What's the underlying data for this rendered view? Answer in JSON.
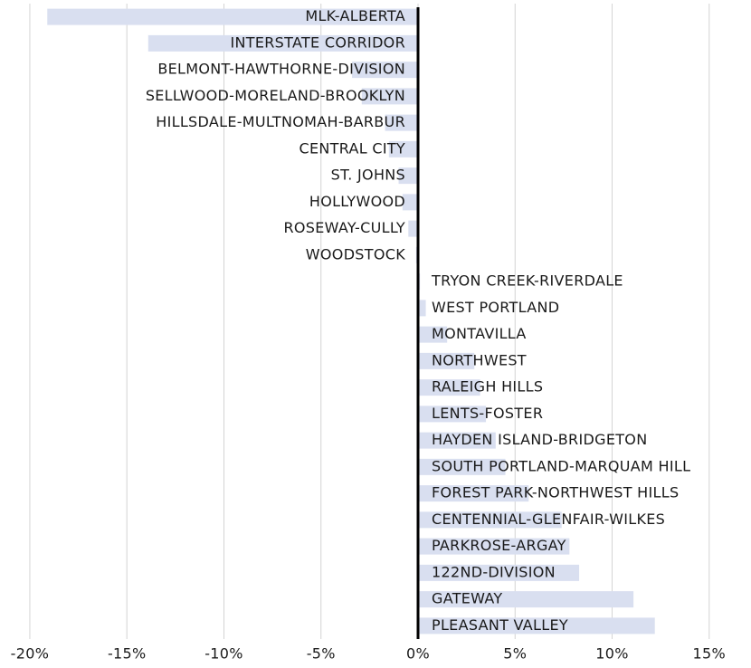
{
  "chart_data": {
    "type": "barh",
    "categories": [
      "MLK-ALBERTA",
      "INTERSTATE CORRIDOR",
      "BELMONT-HAWTHORNE-DIVISION",
      "SELLWOOD-MORELAND-BROOKLYN",
      "HILLSDALE-MULTNOMAH-BARBUR",
      "CENTRAL CITY",
      "ST. JOHNS",
      "HOLLYWOOD",
      "ROSEWAY-CULLY",
      "WOODSTOCK",
      "TRYON CREEK-RIVERDALE",
      "WEST PORTLAND",
      "MONTAVILLA",
      "NORTHWEST",
      "RALEIGH HILLS",
      "LENTS-FOSTER",
      "HAYDEN ISLAND-BRIDGETON",
      "SOUTH PORTLAND-MARQUAM HILL",
      "FOREST PARK-NORTHWEST HILLS",
      "CENTENNIAL-GLENFAIR-WILKES",
      "PARKROSE-ARGAY",
      "122ND-DIVISION",
      "GATEWAY",
      "PLEASANT VALLEY"
    ],
    "values": [
      -19.1,
      -13.9,
      -3.4,
      -2.9,
      -1.7,
      -1.5,
      -1.0,
      -0.8,
      -0.5,
      -0.1,
      0.1,
      0.4,
      1.5,
      2.9,
      3.2,
      3.5,
      4.0,
      4.5,
      5.7,
      7.4,
      7.8,
      8.3,
      11.1,
      12.2
    ],
    "color": "#d9dff0",
    "xlim": [
      -21,
      17
    ],
    "xticks": [
      {
        "value": -20,
        "label": "-20%"
      },
      {
        "value": -15,
        "label": "-15%"
      },
      {
        "value": -10,
        "label": "-10%"
      },
      {
        "value": -5,
        "label": "-5%"
      },
      {
        "value": 0,
        "label": "0%"
      },
      {
        "value": 5,
        "label": "5%"
      },
      {
        "value": 10,
        "label": "10%"
      },
      {
        "value": 15,
        "label": "15%"
      }
    ],
    "grid": true
  }
}
